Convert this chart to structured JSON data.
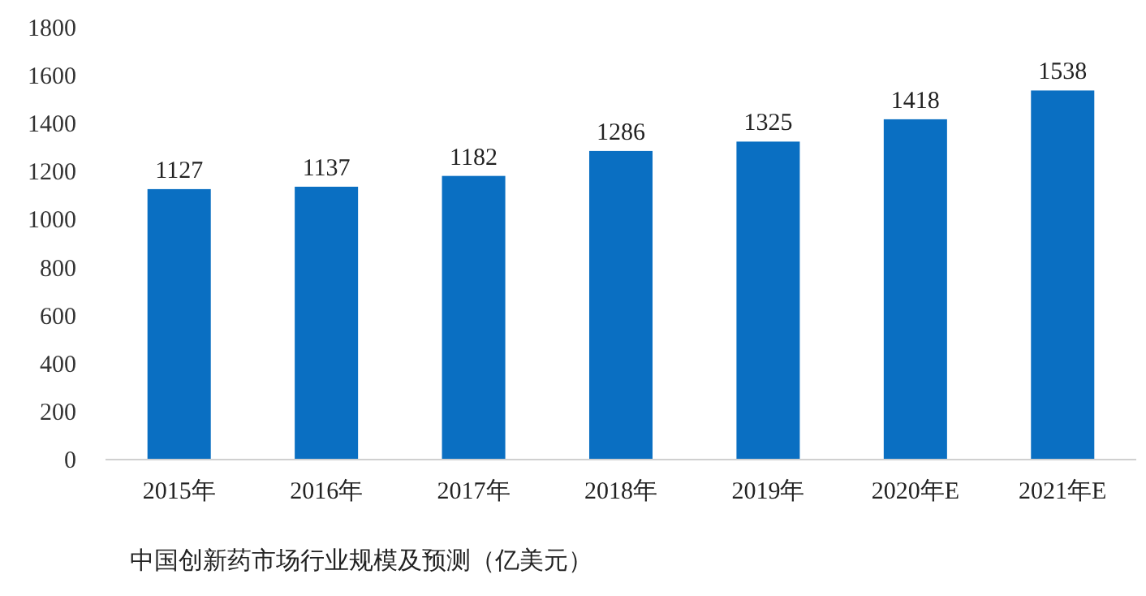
{
  "chart_data": {
    "type": "bar",
    "categories": [
      "2015年",
      "2016年",
      "2017年",
      "2018年",
      "2019年",
      "2020年E",
      "2021年E"
    ],
    "values": [
      1127,
      1137,
      1182,
      1286,
      1325,
      1418,
      1538
    ],
    "color": "#0a6fc2",
    "ylim": [
      0,
      1800
    ],
    "yticks": [
      0,
      200,
      400,
      600,
      800,
      1000,
      1200,
      1400,
      1600,
      1800
    ],
    "data_labels": true,
    "grid": false,
    "annotations": [
      "中国创新药市场行业规模及预测（亿美元）"
    ]
  }
}
